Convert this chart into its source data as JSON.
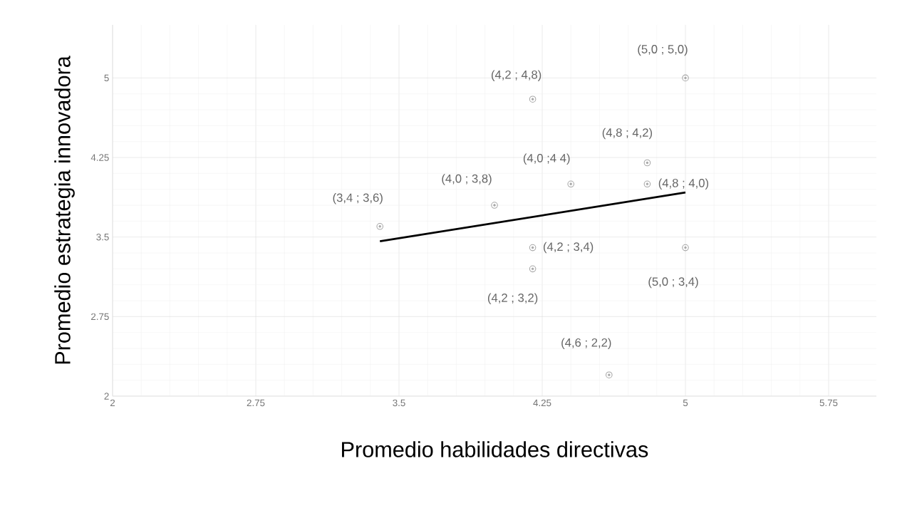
{
  "chart_data": {
    "type": "scatter",
    "xlabel": "Promedio habilidades directivas",
    "ylabel": "Promedio estrategia innovadora",
    "xlim": [
      2,
      6
    ],
    "ylim": [
      2,
      5.5
    ],
    "xticks": [
      2,
      2.75,
      3.5,
      4.25,
      5,
      5.75
    ],
    "yticks": [
      2,
      2.75,
      3.5,
      4.25,
      5
    ],
    "grid": true,
    "series": [
      {
        "marker": "circle",
        "color": "#a6a6a6",
        "x": [
          3.4,
          4.0,
          4.2,
          4.4,
          4.8,
          4.8,
          5.0,
          5.0,
          4.2,
          4.2,
          4.6
        ],
        "values": [
          3.6,
          3.8,
          4.8,
          4.0,
          4.2,
          4.0,
          5.0,
          3.4,
          3.4,
          3.2,
          2.2
        ]
      },
      {
        "type": "line",
        "marker": "none",
        "color": "#000000",
        "x": [
          3.4,
          5.0
        ],
        "values": [
          3.46,
          3.92
        ]
      }
    ],
    "annotations": [
      {
        "text": "(3,4 ; 3,6)",
        "x": 3.4,
        "y": 3.6
      },
      {
        "text": "(4,0 ; 3,8)",
        "x": 4.0,
        "y": 3.8
      },
      {
        "text": "(4,2 ;  4,8)",
        "x": 4.2,
        "y": 4.8
      },
      {
        "text": "(4,0 ;4 4)",
        "x": 4.4,
        "y": 4.0
      },
      {
        "text": "(4,8 ; 4,2)",
        "x": 4.8,
        "y": 4.2
      },
      {
        "text": "(4,8 ; 4,0)",
        "x": 4.8,
        "y": 4.0
      },
      {
        "text": "(5,0 ; 5,0)",
        "x": 5.0,
        "y": 5.0
      },
      {
        "text": "(5,0 ; 3,4)",
        "x": 5.0,
        "y": 3.4
      },
      {
        "text": "(4,2 ; 3,4)",
        "x": 4.2,
        "y": 3.4
      },
      {
        "text": "(4,2 ; 3,2)",
        "x": 4.2,
        "y": 3.2
      },
      {
        "text": "(4,6 ; 2,2)",
        "x": 4.6,
        "y": 2.2
      }
    ]
  }
}
